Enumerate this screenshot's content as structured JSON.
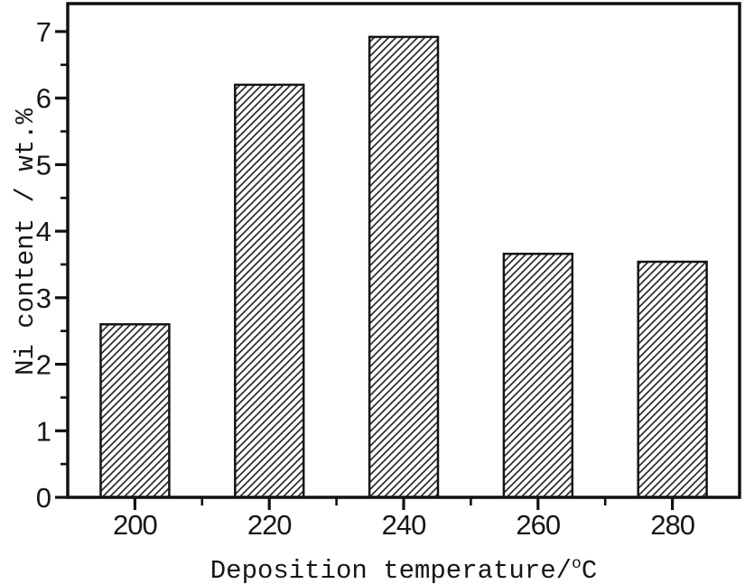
{
  "chart_data": {
    "type": "bar",
    "title": "",
    "categories": [
      "200",
      "220",
      "240",
      "260",
      "280"
    ],
    "values": [
      2.6,
      6.2,
      6.92,
      3.66,
      3.54
    ],
    "xlabel": "Deposition temperature/°C",
    "ylabel": "Ni content / wt.%",
    "xlim": [
      190,
      290
    ],
    "ylim": [
      0,
      7.42
    ],
    "yticks_major": [
      0,
      1,
      2,
      3,
      4,
      5,
      6,
      7
    ],
    "yticks_minor": [
      0.5,
      1.5,
      2.5,
      3.5,
      4.5,
      5.5,
      6.5
    ],
    "xticks_major": [
      200,
      220,
      240,
      260,
      280
    ],
    "xticks_minor": [
      210,
      230,
      250,
      270
    ],
    "bar_width_x_units": 10.2,
    "grid": false,
    "legend": null,
    "style": {
      "bar_fill": "diagonal-hatch",
      "hatch_color": "#2d2d2d",
      "bar_edge_color": "#141414",
      "axis_color": "#111111",
      "text_color": "#161616",
      "background": "#ffffff"
    }
  }
}
